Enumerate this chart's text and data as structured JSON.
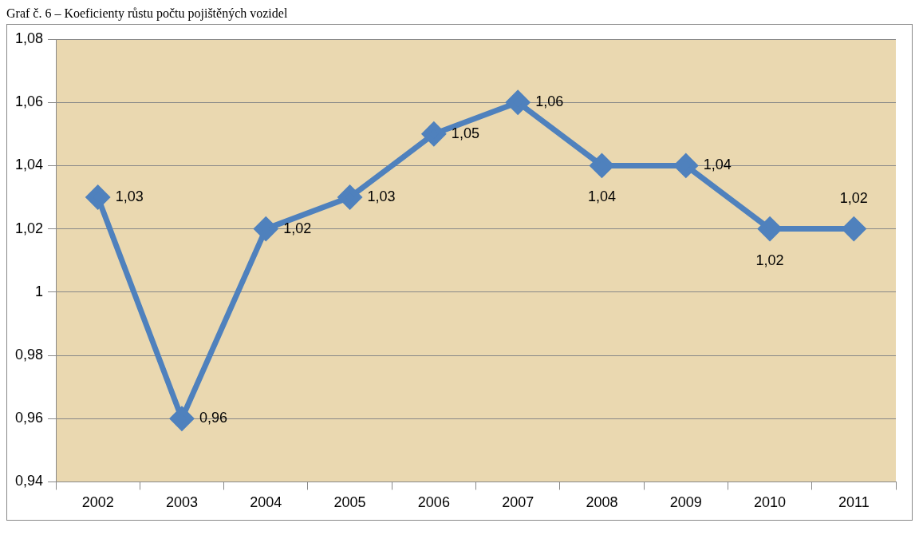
{
  "chart_data": {
    "type": "line",
    "title": "Graf č. 6 – Koeficienty růstu počtu pojištěných vozidel",
    "categories": [
      "2002",
      "2003",
      "2004",
      "2005",
      "2006",
      "2007",
      "2008",
      "2009",
      "2010",
      "2011"
    ],
    "values": [
      1.03,
      0.96,
      1.02,
      1.03,
      1.05,
      1.06,
      1.04,
      1.04,
      1.02,
      1.02
    ],
    "value_labels": [
      "1,03",
      "0,96",
      "1,02",
      "1,03",
      "1,05",
      "1,06",
      "1,04",
      "1,04",
      "1,02",
      "1,02"
    ],
    "color": "#4f81bd",
    "marker": "diamond",
    "line_style": "solid",
    "grid": "y",
    "legend": false,
    "ylim": [
      0.94,
      1.08
    ],
    "yticks": [
      {
        "value": 0.94,
        "label": "0,94"
      },
      {
        "value": 0.96,
        "label": "0,96"
      },
      {
        "value": 0.98,
        "label": "0,98"
      },
      {
        "value": 1,
        "label": "1"
      },
      {
        "value": 1.02,
        "label": "1,02"
      },
      {
        "value": 1.04,
        "label": "1,04"
      },
      {
        "value": 1.06,
        "label": "1,06"
      },
      {
        "value": 1.08,
        "label": "1,08"
      }
    ]
  }
}
